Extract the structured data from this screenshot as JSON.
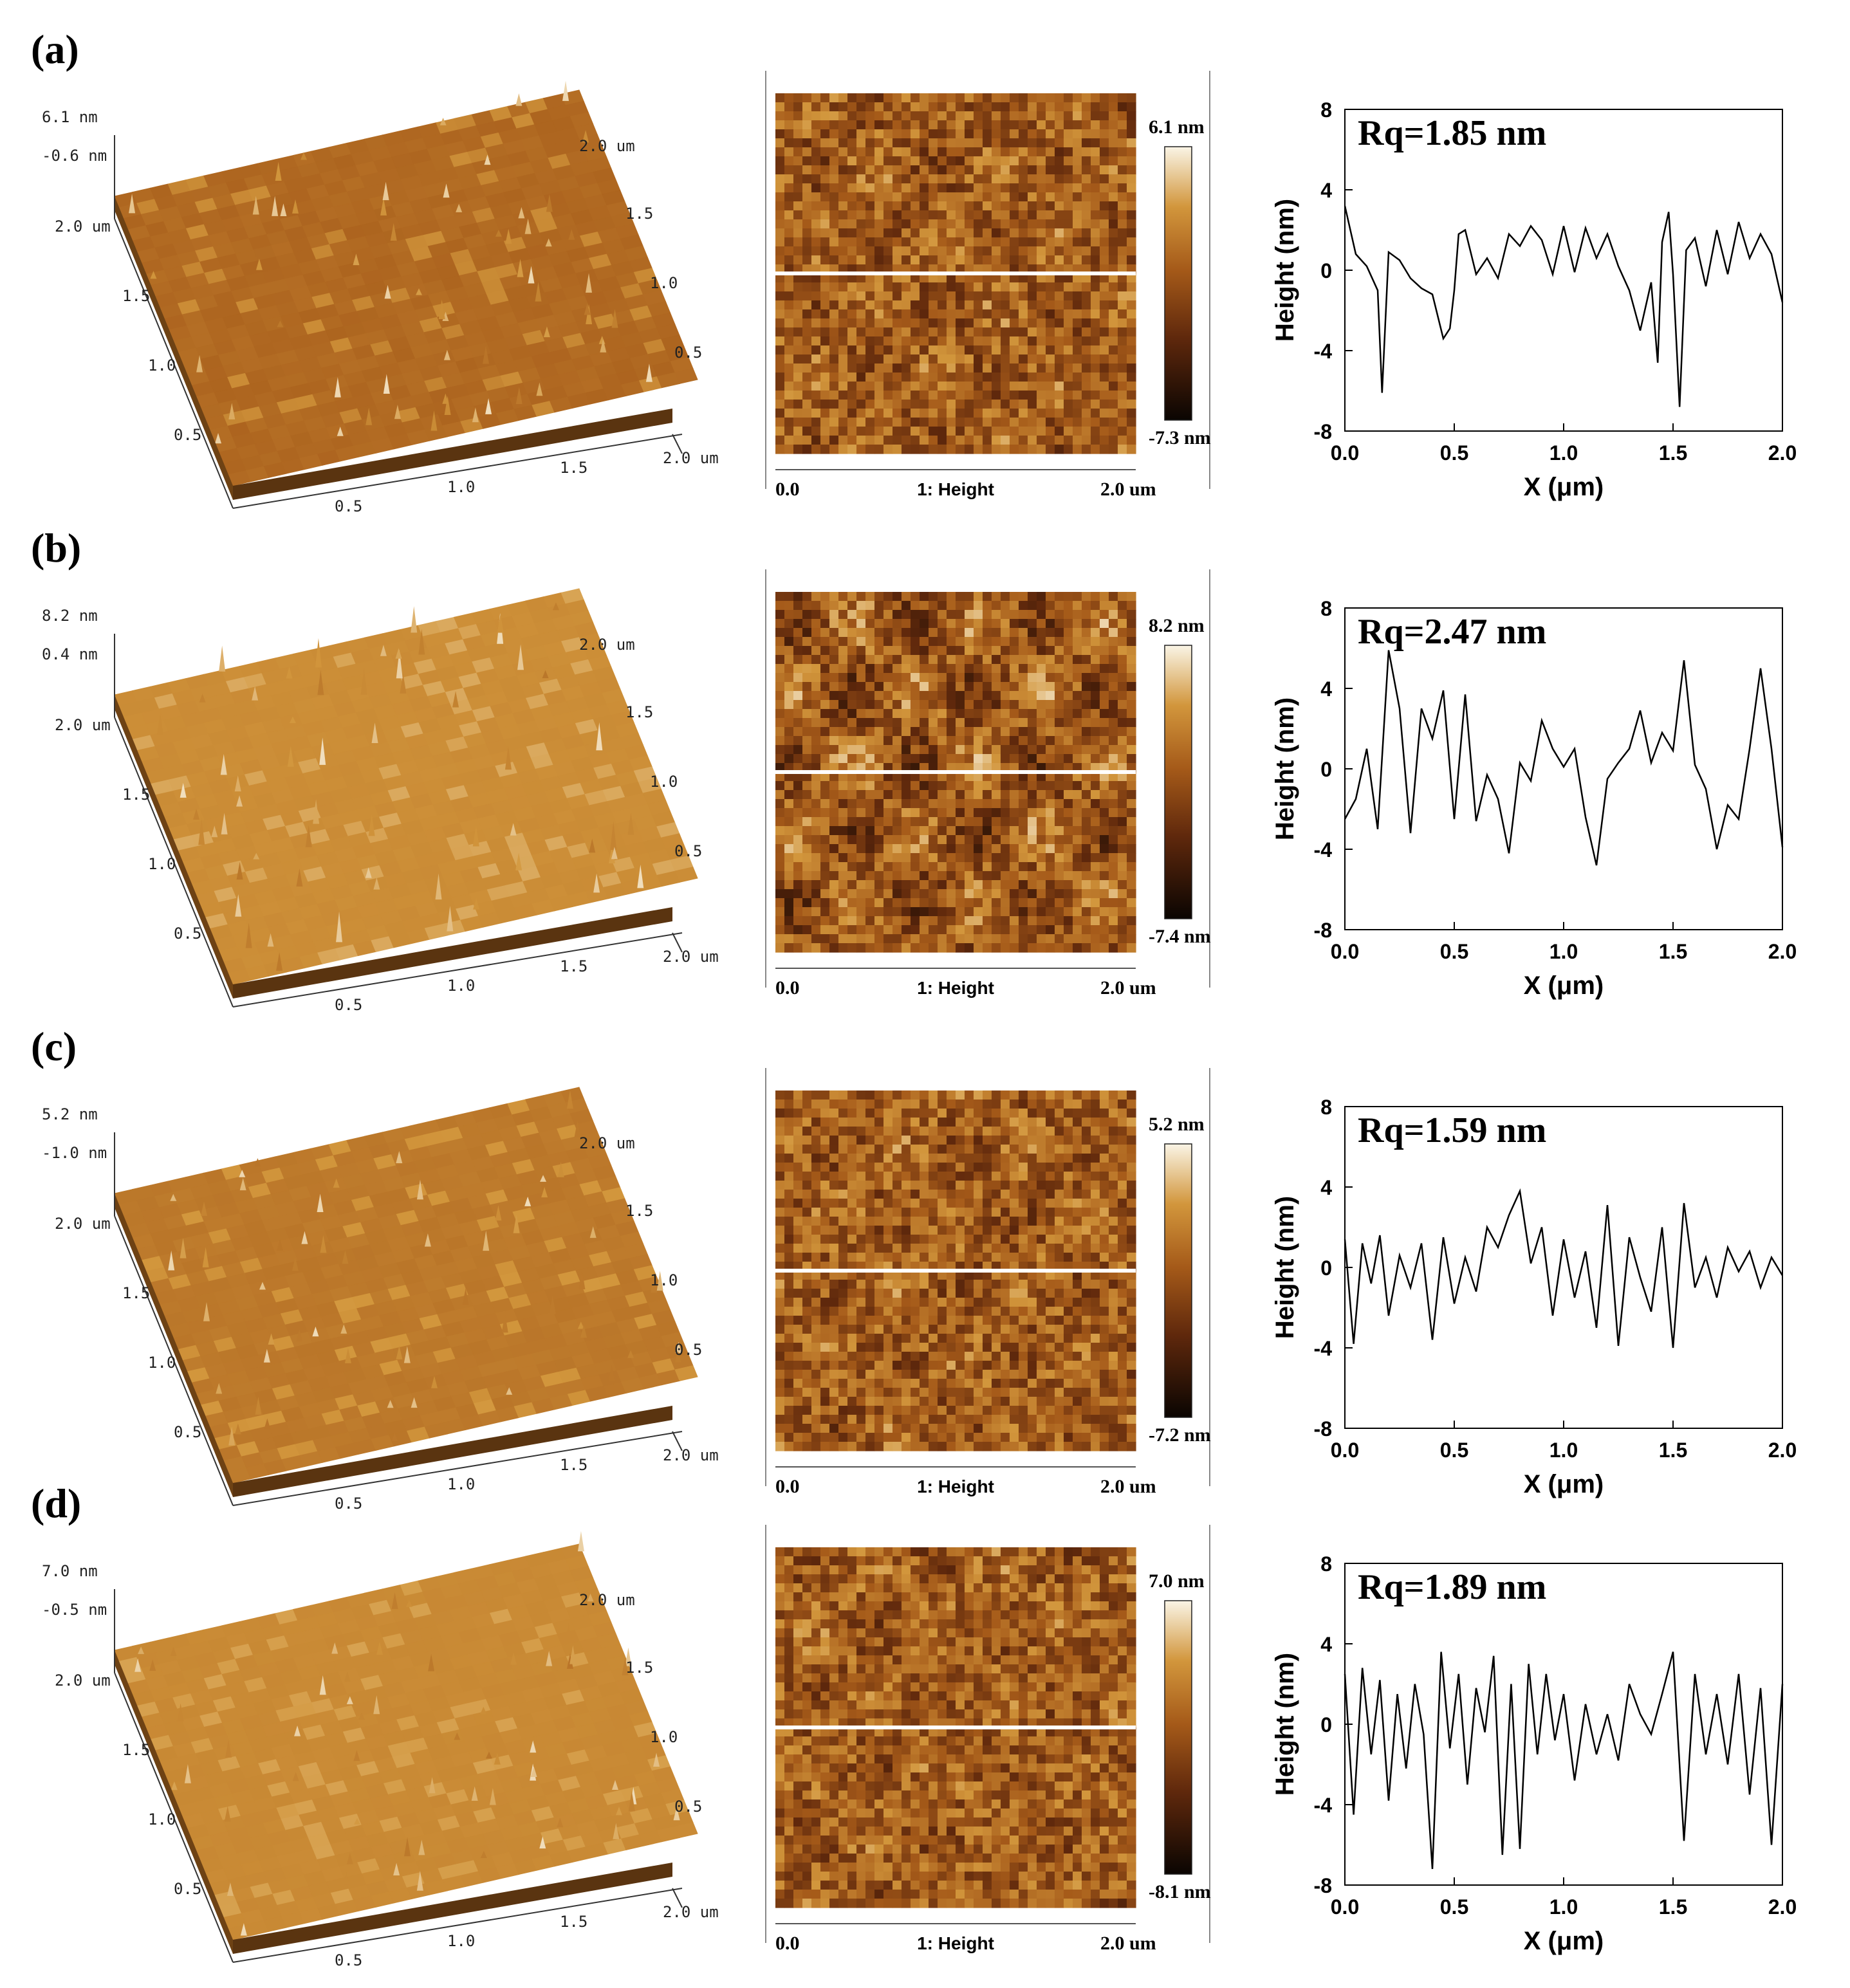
{
  "chart_data": [
    {
      "panel": "(a)",
      "type": "line",
      "surface3d": {
        "z_top": "6.1 nm",
        "z_bot": "-0.6 nm",
        "top_right": "2.0 um",
        "right_ticks": [
          "1.5",
          "1.0",
          "0.5"
        ],
        "bottom_end": "2.0 um",
        "left_ticks": [
          "2.0 um",
          "1.5",
          "1.0",
          "0.5"
        ],
        "bottom_ticks": [
          "0.5",
          "1.0",
          "1.5"
        ]
      },
      "heightmap": {
        "scale_max": "6.1 nm",
        "scale_min": "-7.3 nm",
        "axis_start": "0.0",
        "axis_label": "1: Height",
        "axis_end": "2.0 um"
      },
      "profile": {
        "annotation": "Rq=1.85 nm",
        "xlabel": "X (μm)",
        "ylabel": "Height (nm)",
        "xlim": [
          0,
          2
        ],
        "ylim": [
          -8,
          8
        ],
        "xticks": [
          "0.0",
          "0.5",
          "1.0",
          "1.5",
          "2.0"
        ],
        "yticks": [
          "8",
          "4",
          "0",
          "-4",
          "-8"
        ],
        "roughness": 1.85,
        "x": [
          0.0,
          0.05,
          0.1,
          0.15,
          0.17,
          0.2,
          0.25,
          0.3,
          0.35,
          0.4,
          0.45,
          0.48,
          0.5,
          0.52,
          0.55,
          0.6,
          0.65,
          0.7,
          0.75,
          0.8,
          0.85,
          0.9,
          0.95,
          1.0,
          1.05,
          1.1,
          1.15,
          1.2,
          1.25,
          1.3,
          1.35,
          1.4,
          1.43,
          1.45,
          1.48,
          1.5,
          1.53,
          1.56,
          1.6,
          1.65,
          1.7,
          1.75,
          1.8,
          1.85,
          1.9,
          1.95,
          2.0
        ],
        "y": [
          3.2,
          0.8,
          0.2,
          -1.0,
          -6.1,
          0.9,
          0.5,
          -0.4,
          -0.9,
          -1.2,
          -3.4,
          -2.9,
          -1.0,
          1.8,
          2.0,
          -0.2,
          0.6,
          -0.4,
          1.8,
          1.2,
          2.2,
          1.5,
          -0.2,
          2.2,
          -0.1,
          2.1,
          0.6,
          1.8,
          0.2,
          -1.0,
          -3.0,
          -0.6,
          -4.6,
          1.4,
          2.9,
          -0.2,
          -6.8,
          1.0,
          1.6,
          -0.8,
          2.0,
          -0.2,
          2.4,
          0.6,
          1.8,
          0.8,
          -1.6
        ]
      }
    },
    {
      "panel": "(b)",
      "type": "line",
      "surface3d": {
        "z_top": "8.2 nm",
        "z_bot": "0.4 nm",
        "top_right": "2.0 um",
        "right_ticks": [
          "1.5",
          "1.0",
          "0.5"
        ],
        "bottom_end": "2.0 um",
        "left_ticks": [
          "2.0 um",
          "1.5",
          "1.0",
          "0.5"
        ],
        "bottom_ticks": [
          "0.5",
          "1.0",
          "1.5"
        ]
      },
      "heightmap": {
        "scale_max": "8.2 nm",
        "scale_min": "-7.4 nm",
        "axis_start": "0.0",
        "axis_label": "1: Height",
        "axis_end": "2.0 um"
      },
      "profile": {
        "annotation": "Rq=2.47 nm",
        "xlabel": "X (μm)",
        "ylabel": "Height (nm)",
        "xlim": [
          0,
          2
        ],
        "ylim": [
          -8,
          8
        ],
        "xticks": [
          "0.0",
          "0.5",
          "1.0",
          "1.5",
          "2.0"
        ],
        "yticks": [
          "8",
          "4",
          "0",
          "-4",
          "-8"
        ],
        "roughness": 2.47,
        "x": [
          0.0,
          0.05,
          0.1,
          0.15,
          0.2,
          0.25,
          0.3,
          0.35,
          0.4,
          0.45,
          0.5,
          0.55,
          0.6,
          0.65,
          0.7,
          0.75,
          0.8,
          0.85,
          0.9,
          0.95,
          1.0,
          1.05,
          1.1,
          1.15,
          1.2,
          1.25,
          1.3,
          1.35,
          1.4,
          1.45,
          1.5,
          1.55,
          1.6,
          1.65,
          1.7,
          1.75,
          1.8,
          1.85,
          1.9,
          1.95,
          2.0
        ],
        "y": [
          -2.5,
          -1.5,
          1.0,
          -3.0,
          5.9,
          3.0,
          -3.2,
          3.0,
          1.5,
          3.9,
          -2.5,
          3.7,
          -2.6,
          -0.3,
          -1.5,
          -4.2,
          0.3,
          -0.6,
          2.4,
          1.0,
          0.1,
          1.0,
          -2.4,
          -4.8,
          -0.5,
          0.3,
          1.0,
          2.9,
          0.3,
          1.8,
          0.9,
          5.4,
          0.2,
          -1.0,
          -4.0,
          -1.8,
          -2.5,
          1.0,
          5.0,
          1.0,
          -3.9
        ]
      }
    },
    {
      "panel": "(c)",
      "type": "line",
      "surface3d": {
        "z_top": "5.2 nm",
        "z_bot": "-1.0 nm",
        "top_right": "2.0 um",
        "right_ticks": [
          "1.5",
          "1.0",
          "0.5"
        ],
        "bottom_end": "2.0 um",
        "left_ticks": [
          "2.0 um",
          "1.5",
          "1.0",
          "0.5"
        ],
        "bottom_ticks": [
          "0.5",
          "1.0",
          "1.5"
        ]
      },
      "heightmap": {
        "scale_max": "5.2 nm",
        "scale_min": "-7.2 nm",
        "axis_start": "0.0",
        "axis_label": "1: Height",
        "axis_end": "2.0 um"
      },
      "profile": {
        "annotation": "Rq=1.59 nm",
        "xlabel": "X (μm)",
        "ylabel": "Height (nm)",
        "xlim": [
          0,
          2
        ],
        "ylim": [
          -8,
          8
        ],
        "xticks": [
          "0.0",
          "0.5",
          "1.0",
          "1.5",
          "2.0"
        ],
        "yticks": [
          "8",
          "4",
          "0",
          "-4",
          "-8"
        ],
        "roughness": 1.59,
        "x": [
          0.0,
          0.04,
          0.08,
          0.12,
          0.16,
          0.2,
          0.25,
          0.3,
          0.35,
          0.4,
          0.45,
          0.5,
          0.55,
          0.6,
          0.65,
          0.7,
          0.75,
          0.8,
          0.85,
          0.9,
          0.95,
          1.0,
          1.05,
          1.1,
          1.15,
          1.2,
          1.25,
          1.3,
          1.35,
          1.4,
          1.45,
          1.5,
          1.55,
          1.6,
          1.65,
          1.7,
          1.75,
          1.8,
          1.85,
          1.9,
          1.95,
          2.0
        ],
        "y": [
          1.4,
          -3.8,
          1.2,
          -0.8,
          1.6,
          -2.4,
          0.6,
          -1.0,
          1.2,
          -3.6,
          1.5,
          -1.8,
          0.5,
          -1.2,
          2.0,
          1.0,
          2.6,
          3.8,
          0.2,
          2.0,
          -2.4,
          1.4,
          -1.5,
          0.8,
          -3.0,
          3.1,
          -3.9,
          1.5,
          -0.5,
          -2.2,
          2.0,
          -4.0,
          3.2,
          -1.0,
          0.5,
          -1.5,
          1.0,
          -0.2,
          0.8,
          -1.0,
          0.5,
          -0.4
        ]
      }
    },
    {
      "panel": "(d)",
      "type": "line",
      "surface3d": {
        "z_top": "7.0 nm",
        "z_bot": "-0.5 nm",
        "top_right": "2.0 um",
        "right_ticks": [
          "1.5",
          "1.0",
          "0.5"
        ],
        "bottom_end": "2.0 um",
        "left_ticks": [
          "2.0 um",
          "1.5",
          "1.0",
          "0.5"
        ],
        "bottom_ticks": [
          "0.5",
          "1.0",
          "1.5"
        ]
      },
      "heightmap": {
        "scale_max": "7.0 nm",
        "scale_min": "-8.1 nm",
        "axis_start": "0.0",
        "axis_label": "1: Height",
        "axis_end": "2.0 um"
      },
      "profile": {
        "annotation": "Rq=1.89 nm",
        "xlabel": "X (μm)",
        "ylabel": "Height (nm)",
        "xlim": [
          0,
          2
        ],
        "ylim": [
          -8,
          8
        ],
        "xticks": [
          "0.0",
          "0.5",
          "1.0",
          "1.5",
          "2.0"
        ],
        "yticks": [
          "8",
          "4",
          "0",
          "-4",
          "-8"
        ],
        "roughness": 1.89,
        "x": [
          0.0,
          0.04,
          0.08,
          0.12,
          0.16,
          0.2,
          0.24,
          0.28,
          0.32,
          0.36,
          0.4,
          0.44,
          0.48,
          0.52,
          0.56,
          0.6,
          0.64,
          0.68,
          0.72,
          0.76,
          0.8,
          0.84,
          0.88,
          0.92,
          0.96,
          1.0,
          1.05,
          1.1,
          1.15,
          1.2,
          1.25,
          1.3,
          1.35,
          1.4,
          1.45,
          1.5,
          1.55,
          1.6,
          1.65,
          1.7,
          1.75,
          1.8,
          1.85,
          1.9,
          1.95,
          2.0
        ],
        "y": [
          2.5,
          -4.5,
          2.8,
          -1.5,
          2.2,
          -3.8,
          1.5,
          -2.2,
          2.0,
          -0.5,
          -7.2,
          3.6,
          -1.2,
          2.5,
          -3.0,
          1.8,
          -0.4,
          3.4,
          -6.5,
          2.0,
          -6.2,
          3.0,
          -1.5,
          2.5,
          -0.8,
          1.5,
          -2.8,
          1.0,
          -1.5,
          0.5,
          -1.8,
          2.0,
          0.5,
          -0.5,
          1.5,
          3.6,
          -5.8,
          2.5,
          -1.5,
          1.5,
          -2.0,
          2.5,
          -3.5,
          1.8,
          -6.0,
          2.0
        ]
      }
    }
  ]
}
